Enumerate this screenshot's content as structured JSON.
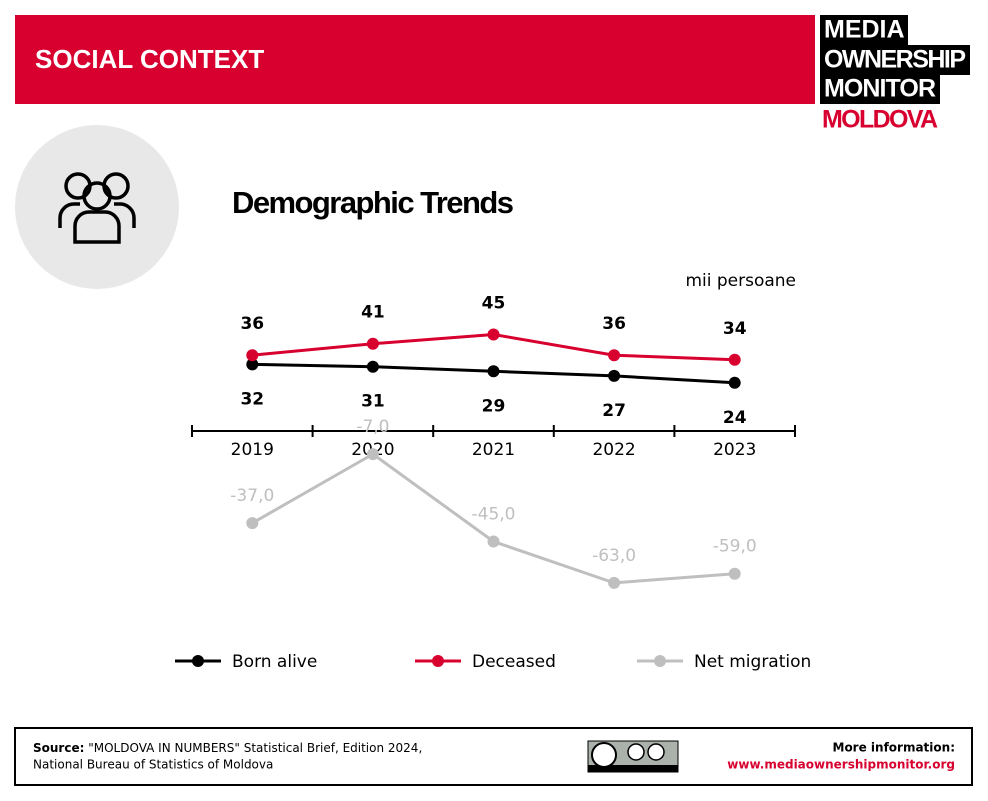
{
  "header": {
    "section": "SOCIAL CONTEXT",
    "logo": [
      "MEDIA",
      "OWNERSHIP",
      "MONITOR"
    ],
    "logo_country": "MOLDOVA"
  },
  "chart_data": {
    "type": "line",
    "title": "Demographic Trends",
    "unit": "mii persoane",
    "categories": [
      "2019",
      "2020",
      "2021",
      "2022",
      "2023"
    ],
    "series": [
      {
        "name": "Born alive",
        "color": "#000000",
        "values": [
          32,
          31,
          29,
          27,
          24
        ]
      },
      {
        "name": "Deceased",
        "color": "#d7002f",
        "values": [
          36,
          41,
          45,
          36,
          34
        ]
      },
      {
        "name": "Net migration",
        "color": "#bfbfbf",
        "values": [
          -37,
          -7,
          -45,
          -63,
          -59
        ],
        "value_labels": [
          "-37,0",
          "-7,0",
          "-45,0",
          "-63,0",
          "-59,0"
        ]
      }
    ]
  },
  "footer": {
    "source_label": "Source:",
    "source_lines": [
      "\"MOLDOVA IN NUMBERS\" Statistical Brief, Edition 2024,",
      "National Bureau of Statistics of Moldova"
    ],
    "more_label": "More information:",
    "url": "www.mediaownershipmonitor.org"
  }
}
